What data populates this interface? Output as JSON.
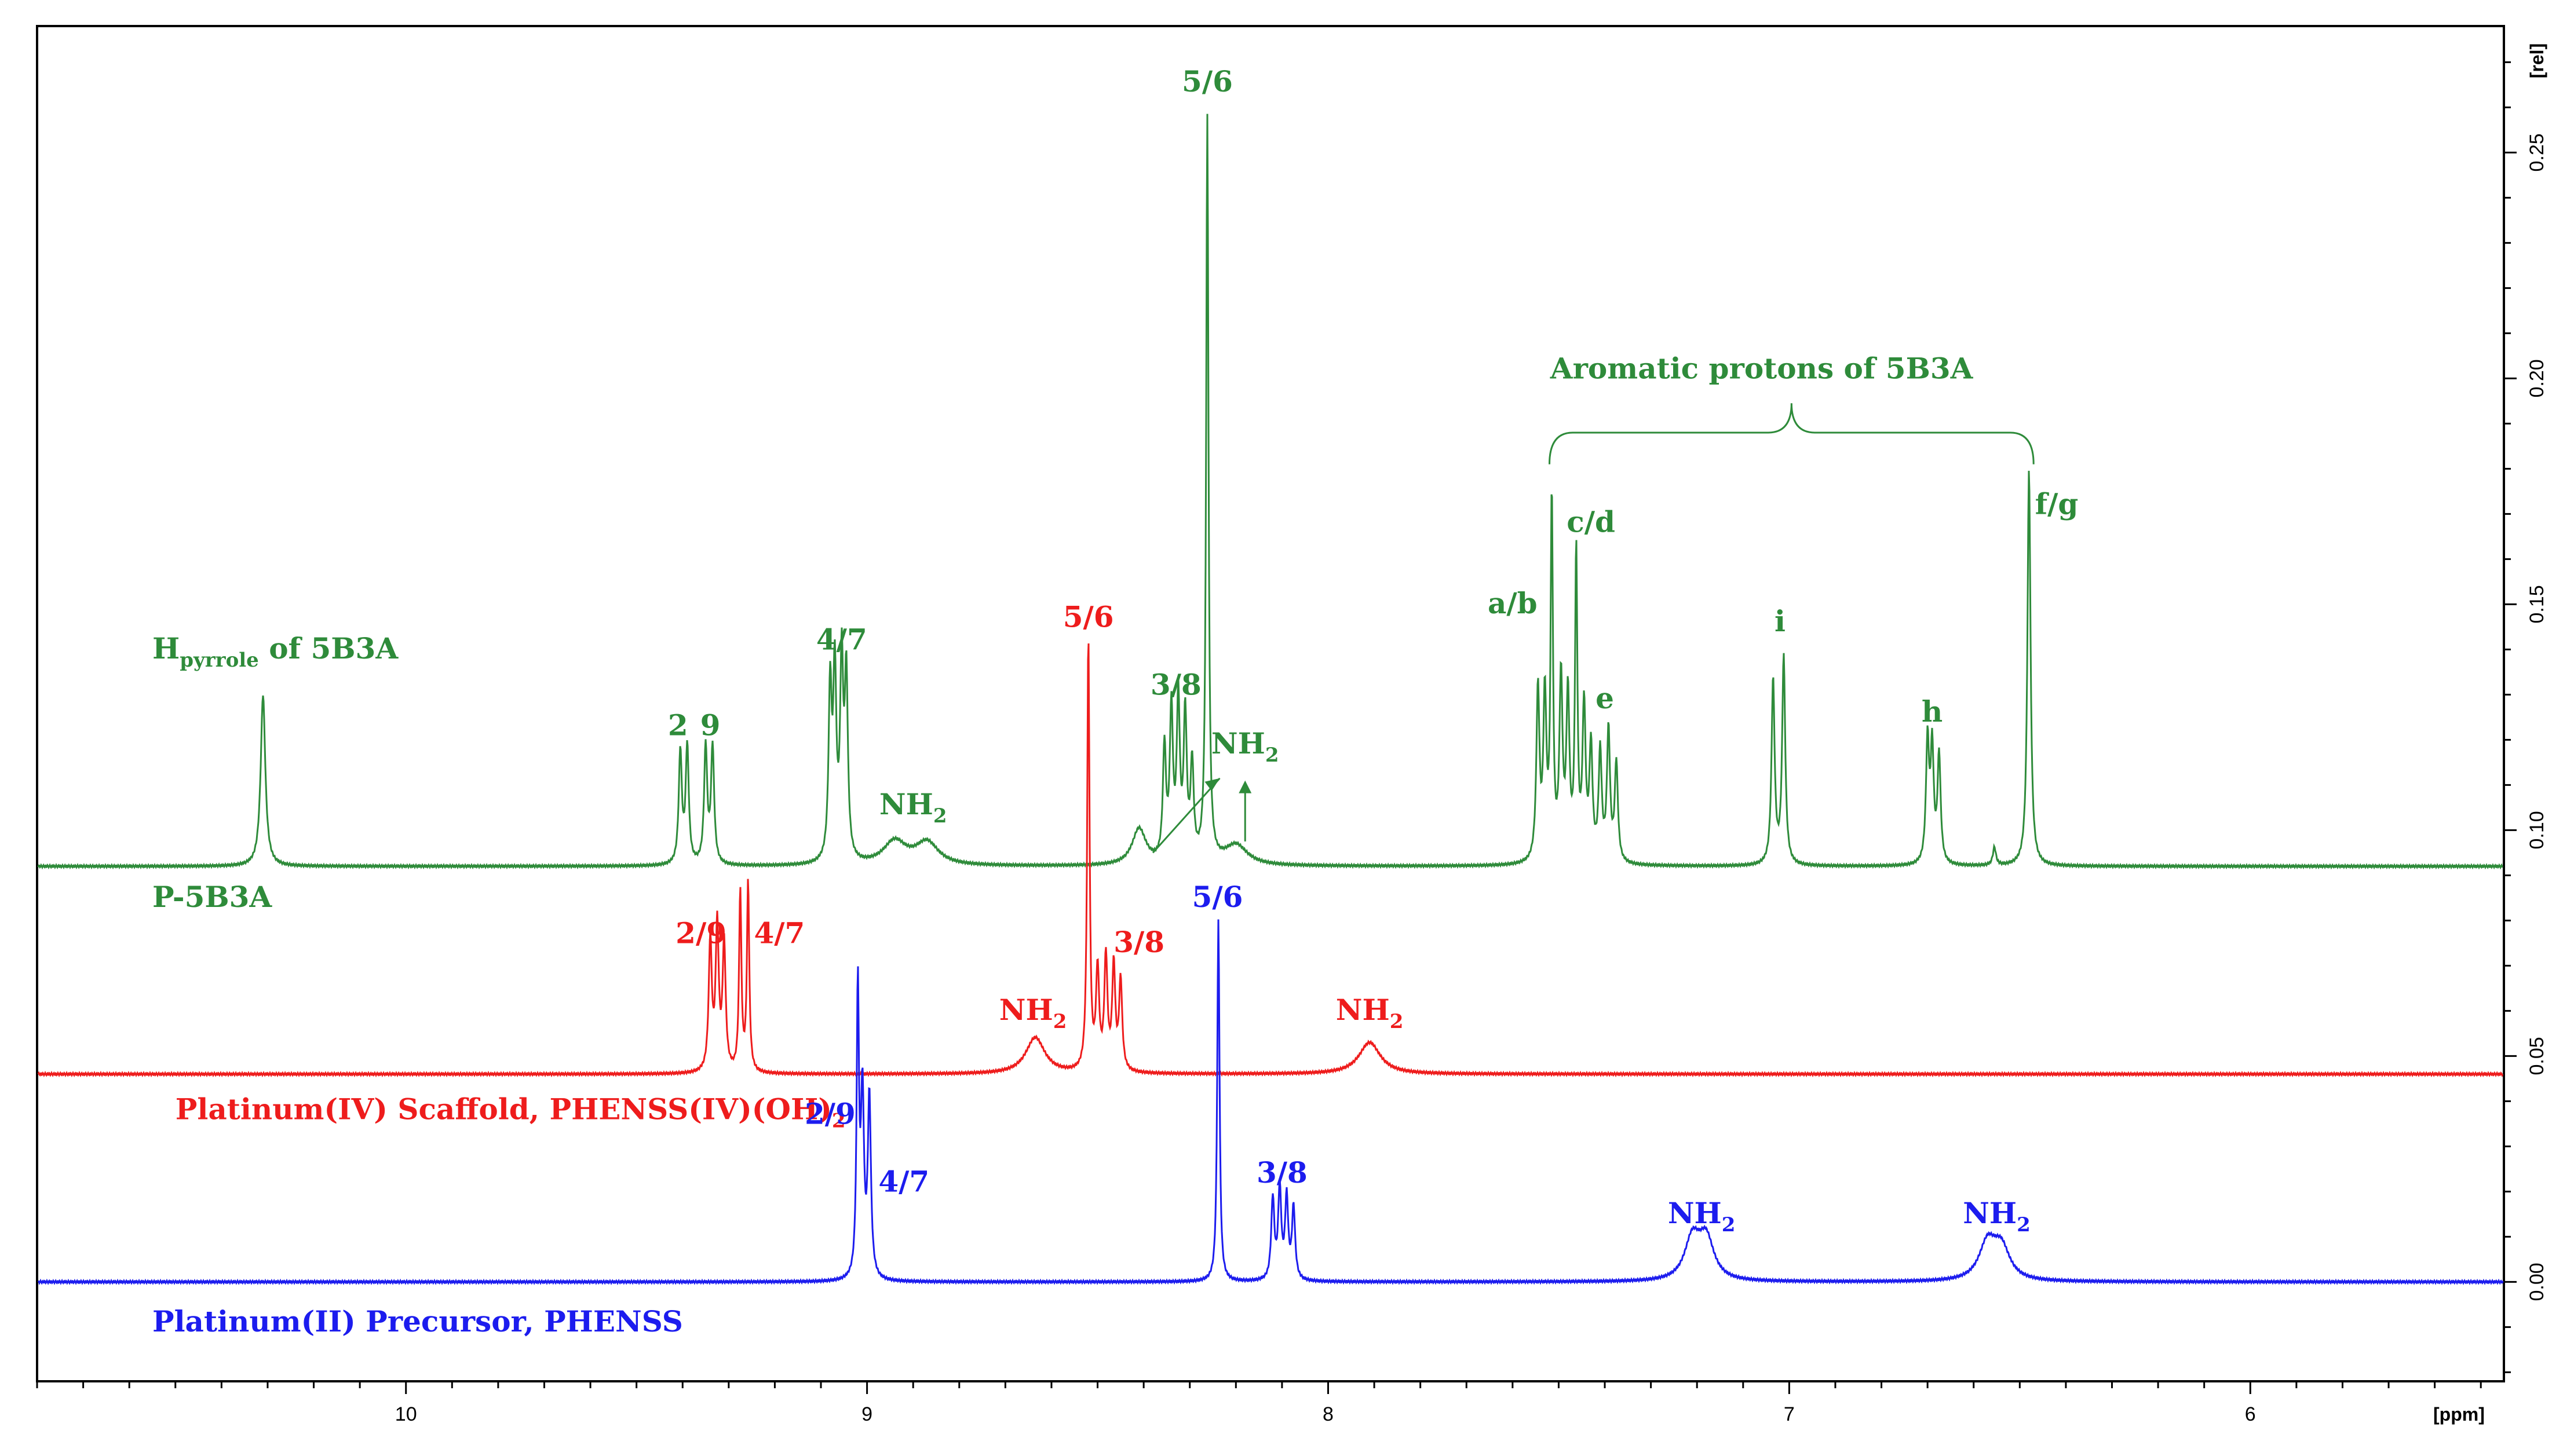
{
  "chart_data": {
    "type": "line",
    "title": "",
    "xlabel": "[ppm]",
    "ylabel": "[rel]",
    "x_reversed": true,
    "xlim": [
      10.8,
      5.45
    ],
    "ylim": [
      -0.022,
      0.278
    ],
    "x_ticks": [
      "10",
      "9",
      "8",
      "7",
      "6"
    ],
    "y_ticks": [
      "0.00",
      "0.05",
      "0.10",
      "0.15",
      "0.20",
      "0.25"
    ],
    "series": [
      {
        "name": "P-5B3A",
        "color": "#2e8b3a",
        "baseline": 0.092,
        "peaks": [
          {
            "ppm": 10.31,
            "h": 0.13,
            "w": 0.006
          },
          {
            "ppm": 9.405,
            "h": 0.117,
            "w": 0.004
          },
          {
            "ppm": 9.39,
            "h": 0.118,
            "w": 0.004
          },
          {
            "ppm": 9.35,
            "h": 0.118,
            "w": 0.004
          },
          {
            "ppm": 9.335,
            "h": 0.118,
            "w": 0.004
          },
          {
            "ppm": 9.08,
            "h": 0.13,
            "w": 0.004
          },
          {
            "ppm": 9.07,
            "h": 0.133,
            "w": 0.004
          },
          {
            "ppm": 9.055,
            "h": 0.135,
            "w": 0.004
          },
          {
            "ppm": 9.045,
            "h": 0.132,
            "w": 0.004
          },
          {
            "ppm": 8.94,
            "h": 0.0972,
            "w": 0.03
          },
          {
            "ppm": 8.87,
            "h": 0.097,
            "w": 0.03
          },
          {
            "ppm": 8.41,
            "h": 0.1,
            "w": 0.018
          },
          {
            "ppm": 8.355,
            "h": 0.117,
            "w": 0.004
          },
          {
            "ppm": 8.34,
            "h": 0.125,
            "w": 0.004
          },
          {
            "ppm": 8.325,
            "h": 0.127,
            "w": 0.004
          },
          {
            "ppm": 8.31,
            "h": 0.124,
            "w": 0.004
          },
          {
            "ppm": 8.295,
            "h": 0.113,
            "w": 0.004
          },
          {
            "ppm": 8.262,
            "h": 0.257,
            "w": 0.003
          },
          {
            "ppm": 8.2,
            "h": 0.0965,
            "w": 0.03
          },
          {
            "ppm": 7.545,
            "h": 0.13,
            "w": 0.004
          },
          {
            "ppm": 7.53,
            "h": 0.128,
            "w": 0.004
          },
          {
            "ppm": 7.515,
            "h": 0.172,
            "w": 0.003
          },
          {
            "ppm": 7.495,
            "h": 0.132,
            "w": 0.004
          },
          {
            "ppm": 7.48,
            "h": 0.128,
            "w": 0.004
          },
          {
            "ppm": 7.462,
            "h": 0.16,
            "w": 0.003
          },
          {
            "ppm": 7.445,
            "h": 0.126,
            "w": 0.004
          },
          {
            "ppm": 7.43,
            "h": 0.117,
            "w": 0.004
          },
          {
            "ppm": 7.41,
            "h": 0.116,
            "w": 0.004
          },
          {
            "ppm": 7.392,
            "h": 0.121,
            "w": 0.004
          },
          {
            "ppm": 7.375,
            "h": 0.114,
            "w": 0.004
          },
          {
            "ppm": 7.035,
            "h": 0.133,
            "w": 0.004
          },
          {
            "ppm": 7.012,
            "h": 0.138,
            "w": 0.004
          },
          {
            "ppm": 6.7,
            "h": 0.119,
            "w": 0.004
          },
          {
            "ppm": 6.69,
            "h": 0.117,
            "w": 0.004
          },
          {
            "ppm": 6.675,
            "h": 0.116,
            "w": 0.004
          },
          {
            "ppm": 6.555,
            "h": 0.096,
            "w": 0.004
          },
          {
            "ppm": 6.48,
            "h": 0.18,
            "w": 0.004
          }
        ]
      },
      {
        "name": "Platinum(IV) Scaffold, PHENSS(IV)(OH)2",
        "color": "#ee1c1c",
        "baseline": 0.046,
        "peaks": [
          {
            "ppm": 9.34,
            "h": 0.075,
            "w": 0.004
          },
          {
            "ppm": 9.325,
            "h": 0.078,
            "w": 0.004
          },
          {
            "ppm": 9.31,
            "h": 0.074,
            "w": 0.004
          },
          {
            "ppm": 9.275,
            "h": 0.086,
            "w": 0.003
          },
          {
            "ppm": 9.258,
            "h": 0.088,
            "w": 0.003
          },
          {
            "ppm": 8.635,
            "h": 0.054,
            "w": 0.025
          },
          {
            "ppm": 8.52,
            "h": 0.142,
            "w": 0.003
          },
          {
            "ppm": 8.5,
            "h": 0.068,
            "w": 0.004
          },
          {
            "ppm": 8.482,
            "h": 0.071,
            "w": 0.004
          },
          {
            "ppm": 8.465,
            "h": 0.069,
            "w": 0.004
          },
          {
            "ppm": 8.45,
            "h": 0.066,
            "w": 0.004
          },
          {
            "ppm": 7.91,
            "h": 0.053,
            "w": 0.028
          }
        ]
      },
      {
        "name": "Platinum(II) Precursor, PHENSS",
        "color": "#1c1cee",
        "baseline": 0.0,
        "peaks": [
          {
            "ppm": 9.02,
            "h": 0.064,
            "w": 0.003
          },
          {
            "ppm": 9.01,
            "h": 0.04,
            "w": 0.004
          },
          {
            "ppm": 8.995,
            "h": 0.04,
            "w": 0.004
          },
          {
            "ppm": 8.238,
            "h": 0.08,
            "w": 0.003
          },
          {
            "ppm": 8.12,
            "h": 0.018,
            "w": 0.004
          },
          {
            "ppm": 8.105,
            "h": 0.02,
            "w": 0.004
          },
          {
            "ppm": 8.09,
            "h": 0.018,
            "w": 0.004
          },
          {
            "ppm": 8.075,
            "h": 0.016,
            "w": 0.004
          },
          {
            "ppm": 7.21,
            "h": 0.009,
            "w": 0.02
          },
          {
            "ppm": 7.18,
            "h": 0.009,
            "w": 0.02
          },
          {
            "ppm": 6.57,
            "h": 0.008,
            "w": 0.022
          },
          {
            "ppm": 6.54,
            "h": 0.007,
            "w": 0.022
          }
        ]
      }
    ],
    "annotations": {
      "green": [
        {
          "text": "H",
          "sub": "pyrrole",
          "tail": " of 5B3A",
          "ppm": 10.55,
          "y": 0.138
        },
        {
          "text": "2",
          "ppm": 9.41,
          "y": 0.121
        },
        {
          "text": "9",
          "ppm": 9.34,
          "y": 0.121
        },
        {
          "text": "4/7",
          "ppm": 9.055,
          "y": 0.14
        },
        {
          "text": "NH",
          "sub": "2",
          "ppm": 8.9,
          "y": 0.1035
        },
        {
          "text": "3/8",
          "ppm": 8.33,
          "y": 0.13
        },
        {
          "text": "5/6",
          "ppm": 8.262,
          "y": 0.2635
        },
        {
          "text": "NH",
          "sub": "2",
          "ppm": 8.18,
          "y": 0.117
        },
        {
          "text": "Aromatic protons of 5B3A",
          "ppm": 7.06,
          "y": 0.2
        },
        {
          "text": "a/b",
          "ppm": 7.6,
          "y": 0.148
        },
        {
          "text": "c/d",
          "ppm": 7.43,
          "y": 0.166
        },
        {
          "text": "e",
          "ppm": 7.4,
          "y": 0.127
        },
        {
          "text": "i",
          "ppm": 7.02,
          "y": 0.144
        },
        {
          "text": "h",
          "ppm": 6.69,
          "y": 0.124
        },
        {
          "text": "f/g",
          "ppm": 6.42,
          "y": 0.17
        },
        {
          "text": "P-5B3A",
          "ppm": 10.55,
          "y": 0.083
        }
      ],
      "red": [
        {
          "text": "2/9",
          "ppm": 9.36,
          "y": 0.075
        },
        {
          "text": "4/7",
          "ppm": 9.19,
          "y": 0.075
        },
        {
          "text": "5/6",
          "ppm": 8.52,
          "y": 0.145
        },
        {
          "text": "3/8",
          "ppm": 8.41,
          "y": 0.073
        },
        {
          "text": "NH",
          "sub": "2",
          "ppm": 8.64,
          "y": 0.058
        },
        {
          "text": "NH",
          "sub": "2",
          "ppm": 7.91,
          "y": 0.058
        },
        {
          "text": "Platinum(IV)  Scaffold, PHENSS(IV)(OH)",
          "sub": "2",
          "ppm": 10.5,
          "y": 0.036
        }
      ],
      "blue": [
        {
          "text": "2/9",
          "ppm": 9.08,
          "y": 0.035
        },
        {
          "text": "4/7",
          "ppm": 8.92,
          "y": 0.02
        },
        {
          "text": "5/6",
          "ppm": 8.24,
          "y": 0.083
        },
        {
          "text": "3/8",
          "ppm": 8.1,
          "y": 0.022
        },
        {
          "text": "NH",
          "sub": "2",
          "ppm": 7.19,
          "y": 0.013
        },
        {
          "text": "NH",
          "sub": "2",
          "ppm": 6.55,
          "y": 0.013
        },
        {
          "text": "Platinum(II)  Precursor, PHENSS",
          "ppm": 10.55,
          "y": -0.011
        }
      ]
    },
    "grid": false,
    "legend": "none"
  }
}
